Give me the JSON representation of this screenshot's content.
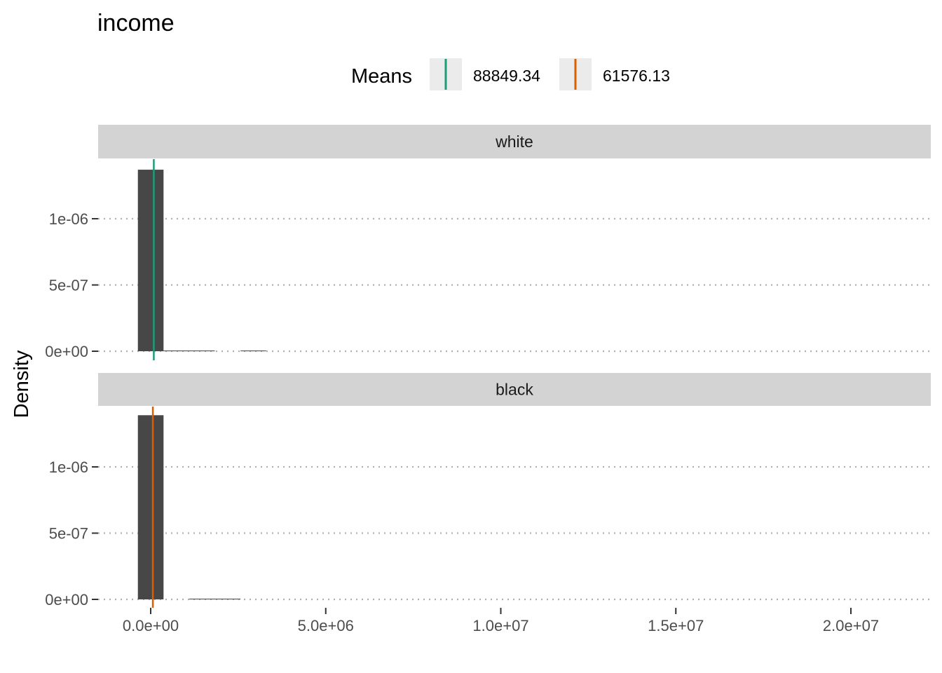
{
  "chart_data": {
    "type": "bar",
    "title": "income",
    "xlabel": "",
    "ylabel": "Density",
    "legend": {
      "title": "Means",
      "position": "top",
      "entries": [
        {
          "label": "88849.34",
          "color": "#1B9E77"
        },
        {
          "label": "61576.13",
          "color": "#D95F02"
        }
      ]
    },
    "xlim": [
      -1500000,
      22500000
    ],
    "ylim": [
      -6e-08,
      1.4e-06
    ],
    "x_ticks": [
      0,
      5000000,
      10000000,
      15000000,
      20000000
    ],
    "x_tick_labels": [
      "0.0e+00",
      "5.0e+06",
      "1.0e+07",
      "1.5e+07",
      "2.0e+07"
    ],
    "y_ticks": [
      0,
      5e-07,
      1e-06
    ],
    "y_tick_labels": [
      "0e+00",
      "5e-07",
      "1e-06"
    ],
    "grid": "horizontal dotted",
    "bin_width": 733000,
    "bar_color": "#474747",
    "panels": [
      {
        "strip": "white",
        "mean": 88849.34,
        "mean_color": "#1B9E77",
        "bins": [
          {
            "x0": -366000,
            "x1": 367000,
            "density": 1.37e-06
          },
          {
            "x0": 367000,
            "x1": 1100000,
            "density": 4.5e-09
          },
          {
            "x0": 1100000,
            "x1": 1833000,
            "density": 1.2e-09
          },
          {
            "x0": 2566000,
            "x1": 3299000,
            "density": 4e-10
          }
        ]
      },
      {
        "strip": "black",
        "mean": 61576.13,
        "mean_color": "#D95F02",
        "bins": [
          {
            "x0": -366000,
            "x1": 367000,
            "density": 1.39e-06
          },
          {
            "x0": 1100000,
            "x1": 1833000,
            "density": 2.5e-09
          },
          {
            "x0": 1833000,
            "x1": 2566000,
            "density": 2.5e-09
          }
        ]
      }
    ]
  }
}
